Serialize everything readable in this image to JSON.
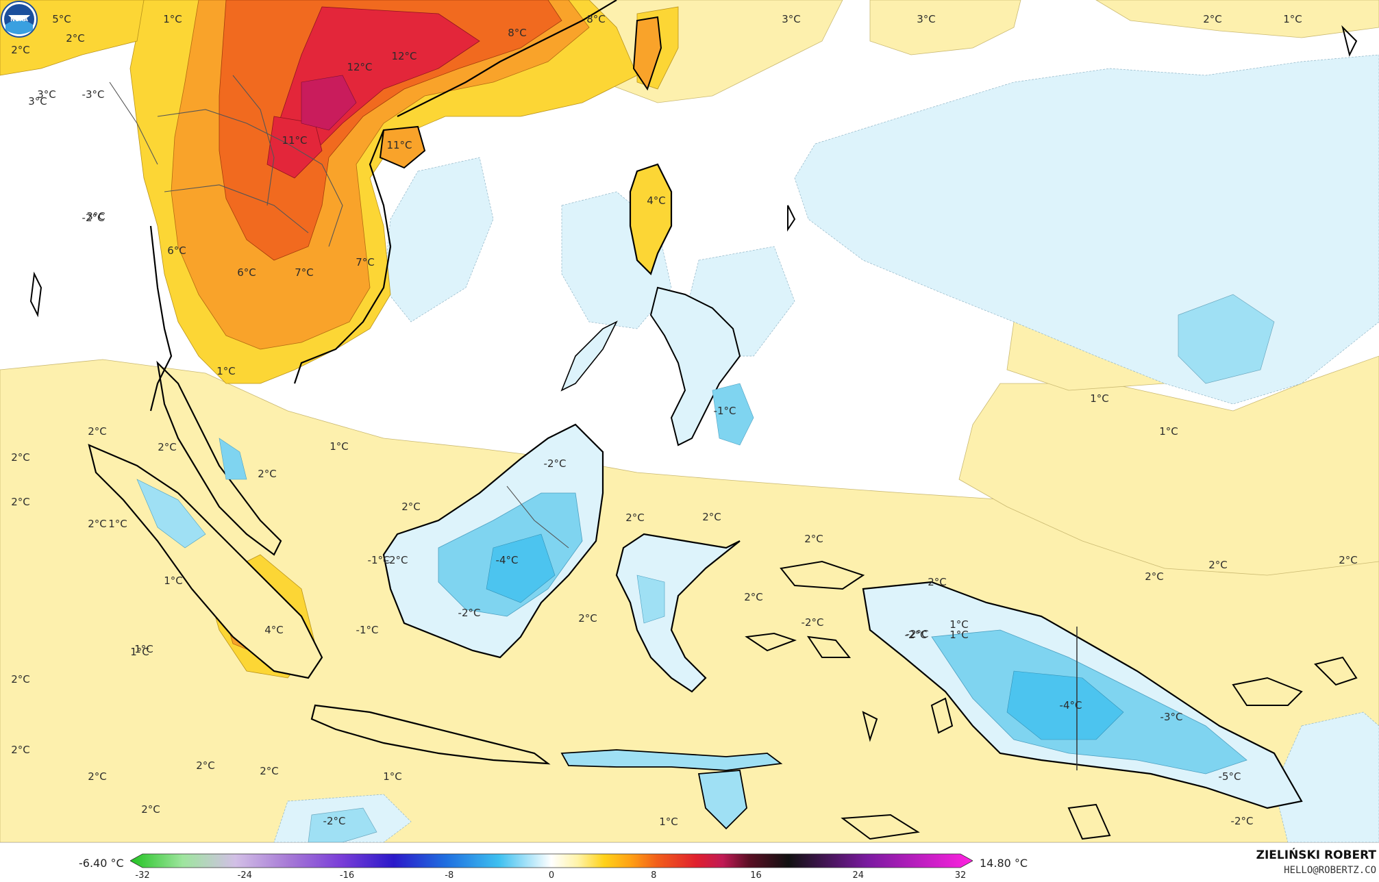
{
  "labels": [
    {
      "text": "2°C"
    },
    {
      "text": "5°C"
    },
    {
      "text": "2°C"
    },
    {
      "text": "1°C"
    },
    {
      "text": "2°C"
    },
    {
      "text": "3°C"
    },
    {
      "text": "3°C"
    },
    {
      "text": "-3°C"
    },
    {
      "text": "12°C"
    },
    {
      "text": "12°C"
    },
    {
      "text": "8°C"
    },
    {
      "text": "8°C"
    },
    {
      "text": "3°C"
    },
    {
      "text": "3°C"
    },
    {
      "text": "2°C"
    },
    {
      "text": "1°C"
    },
    {
      "text": "11°C"
    },
    {
      "text": "11°C"
    },
    {
      "text": "3°C"
    },
    {
      "text": "-2°C"
    },
    {
      "text": "4°C"
    },
    {
      "text": "6°C"
    },
    {
      "text": "6°C"
    },
    {
      "text": "7°C"
    },
    {
      "text": "7°C"
    },
    {
      "text": "1°C"
    },
    {
      "text": "2°C"
    },
    {
      "text": "2°C"
    },
    {
      "text": "2°C"
    },
    {
      "text": "1°C"
    },
    {
      "text": "-2°C"
    },
    {
      "text": "2°C"
    },
    {
      "text": "2°C"
    },
    {
      "text": "2°C"
    },
    {
      "text": "2°C"
    },
    {
      "text": "1°C"
    },
    {
      "text": "1°C"
    },
    {
      "text": "-1°C"
    },
    {
      "text": "-4°C"
    },
    {
      "text": "-2°C"
    },
    {
      "text": "1°C"
    },
    {
      "text": "2°C"
    },
    {
      "text": "2°C"
    },
    {
      "text": "2°C"
    },
    {
      "text": "1°C"
    },
    {
      "text": "4°C"
    },
    {
      "text": "-1°C"
    },
    {
      "text": "2°C"
    },
    {
      "text": "1°C"
    },
    {
      "text": "2°C"
    },
    {
      "text": "2°C"
    },
    {
      "text": "2°C"
    },
    {
      "text": "2°C"
    },
    {
      "text": "2°C"
    },
    {
      "text": "-2°C"
    },
    {
      "text": "1°C"
    },
    {
      "text": "2°C"
    },
    {
      "text": "1°C"
    },
    {
      "text": "1°C"
    },
    {
      "text": "2°C"
    },
    {
      "text": "2°C"
    },
    {
      "text": "2°C"
    },
    {
      "text": "1°C"
    },
    {
      "text": "2°C"
    },
    {
      "text": "2°C"
    },
    {
      "text": "-2°C"
    },
    {
      "text": "1°C"
    },
    {
      "text": "-4°C"
    },
    {
      "text": "-3°C"
    },
    {
      "text": "-5°C"
    },
    {
      "text": "-2°C"
    },
    {
      "text": "-2°C"
    },
    {
      "text": "-1°C"
    },
    {
      "text": "-2°C"
    },
    {
      "text": "-2°C"
    }
  ],
  "colorbar": {
    "min_label": "-6.40 °C",
    "max_label": "14.80 °C",
    "tick_values": [
      -32,
      -24,
      -16,
      -8,
      0,
      8,
      16,
      24,
      32
    ],
    "range": [
      -32,
      32
    ],
    "stops": [
      {
        "value": -32,
        "color": "#22c322"
      },
      {
        "value": -28,
        "color": "#9ee59e"
      },
      {
        "value": -24,
        "color": "#d2bfe6"
      },
      {
        "value": -20,
        "color": "#a77ad6"
      },
      {
        "value": -16,
        "color": "#7a3ed8"
      },
      {
        "value": -12,
        "color": "#2b19c9"
      },
      {
        "value": -8,
        "color": "#1f6fe0"
      },
      {
        "value": -4,
        "color": "#3ec0f0"
      },
      {
        "value": 0,
        "color": "#ffffff"
      },
      {
        "value": 2,
        "color": "#fff3a8"
      },
      {
        "value": 4,
        "color": "#ffd21a"
      },
      {
        "value": 6,
        "color": "#ffa114"
      },
      {
        "value": 8,
        "color": "#f25f1a"
      },
      {
        "value": 11,
        "color": "#e0202e"
      },
      {
        "value": 13,
        "color": "#c01a55"
      },
      {
        "value": 15,
        "color": "#5a0f24"
      },
      {
        "value": 18,
        "color": "#111111"
      },
      {
        "value": 24,
        "color": "#7a1aa0"
      },
      {
        "value": 32,
        "color": "#ff22e0"
      }
    ]
  },
  "credit": {
    "name": "ZIELIŃSKI ROBERT",
    "email": "HELLO@ROBERTZ.CO"
  },
  "colors": {
    "pale_yellow": "#fdf0ad",
    "yellow": "#fcd635",
    "orange": "#f9a32a",
    "red_orange": "#f16a1f",
    "red": "#e3263a",
    "pale_blue": "#ddf3fb",
    "light_blue": "#a9e4f5",
    "blue": "#52c5ee",
    "coast": "#000000",
    "border": "#555555"
  },
  "logo": {
    "text": "NOAA"
  }
}
